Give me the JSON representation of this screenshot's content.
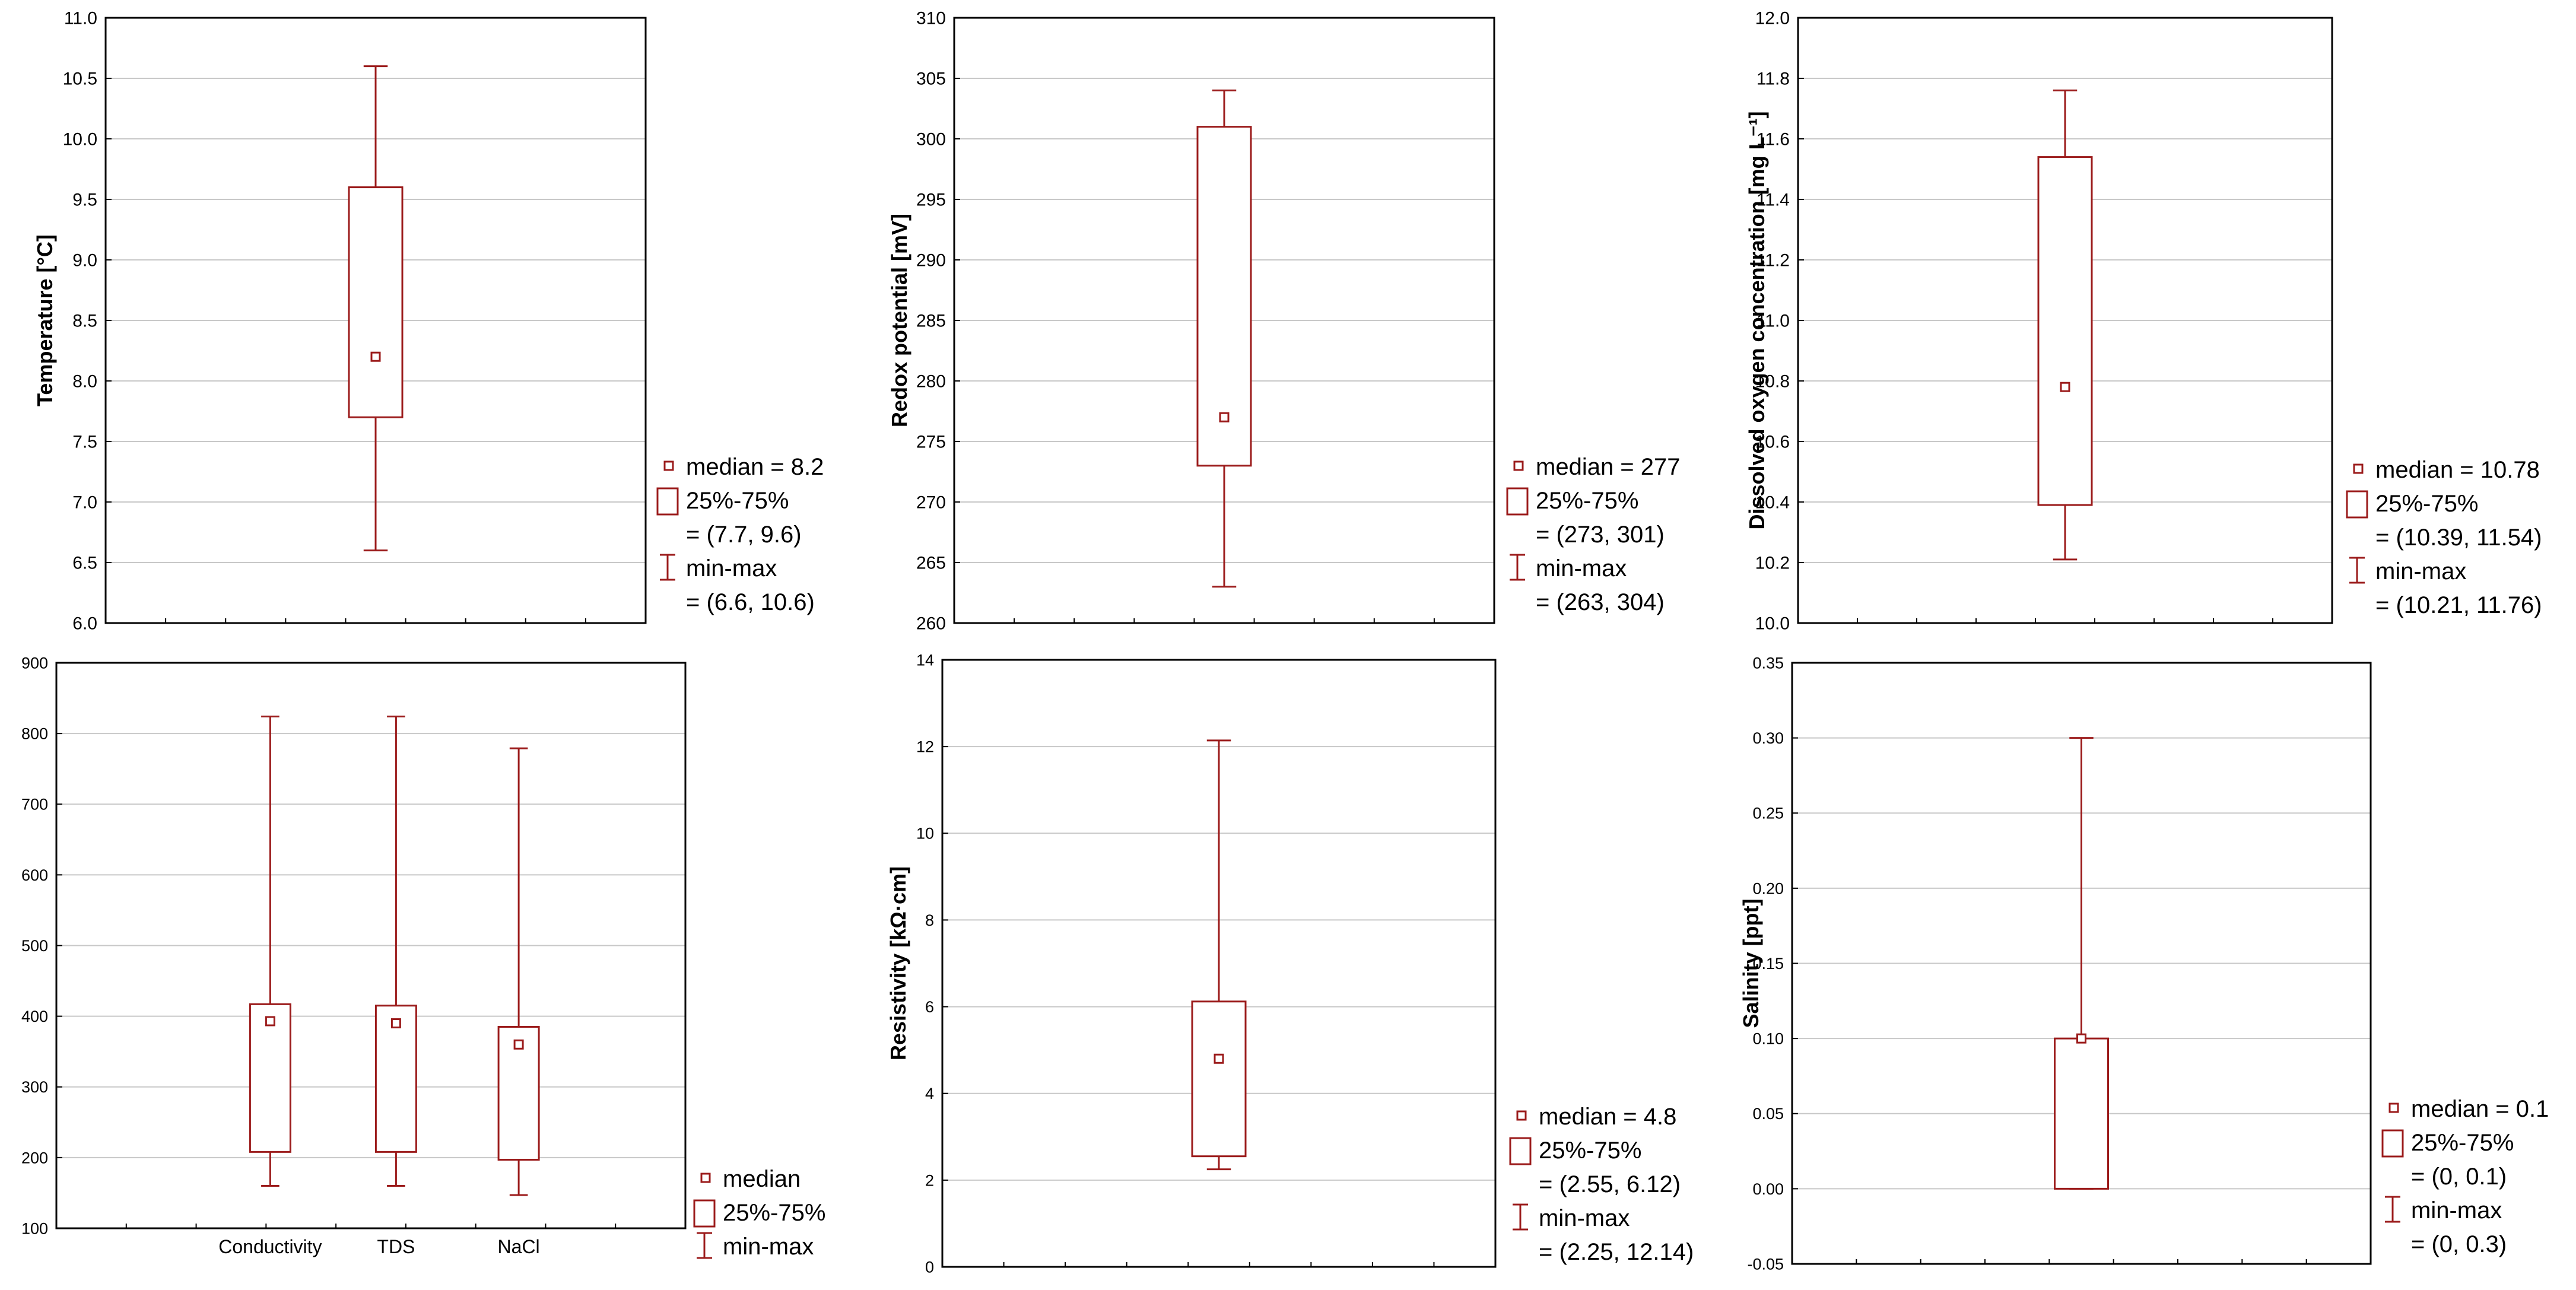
{
  "colors": {
    "box": "#9b1b1b",
    "grid": "#c8c8c8",
    "frame": "#000000",
    "text": "#000000"
  },
  "chart_data": [
    {
      "id": "temperature",
      "type": "box",
      "ylabel": "Temperature [°C]",
      "ylim": [
        6.0,
        11.0
      ],
      "yticks": [
        "6.0",
        "6.5",
        "7.0",
        "7.5",
        "8.0",
        "8.5",
        "9.0",
        "9.5",
        "10.0",
        "10.5",
        "11.0"
      ],
      "boxes": [
        {
          "category": "",
          "median": 8.2,
          "q1": 7.7,
          "q3": 9.6,
          "min": 6.6,
          "max": 10.6
        }
      ],
      "legend": {
        "median": "median = 8.2",
        "box": "25%-75%",
        "box_range": "= (7.7, 9.6)",
        "whisker": "min-max",
        "whisker_range": "= (6.6, 10.6)"
      }
    },
    {
      "id": "redox",
      "type": "box",
      "ylabel": "Redox potential [mV]",
      "ylim": [
        260,
        310
      ],
      "yticks": [
        "260",
        "265",
        "270",
        "275",
        "280",
        "285",
        "290",
        "295",
        "300",
        "305",
        "310"
      ],
      "boxes": [
        {
          "category": "",
          "median": 277,
          "q1": 273,
          "q3": 301,
          "min": 263,
          "max": 304
        }
      ],
      "legend": {
        "median": "median = 277",
        "box": "25%-75%",
        "box_range": "= (273, 301)",
        "whisker": "min-max",
        "whisker_range": "= (263, 304)"
      }
    },
    {
      "id": "oxygen",
      "type": "box",
      "ylabel": "Dissolved oxygen concentration [mg L⁻¹]",
      "ylim": [
        10.0,
        12.0
      ],
      "yticks": [
        "10.0",
        "10.2",
        "10.4",
        "10.6",
        "10.8",
        "11.0",
        "11.2",
        "11.4",
        "11.6",
        "11.8",
        "12.0"
      ],
      "boxes": [
        {
          "category": "",
          "median": 10.78,
          "q1": 10.39,
          "q3": 11.54,
          "min": 10.21,
          "max": 11.76
        }
      ],
      "legend": {
        "median": "median = 10.78",
        "box": "25%-75%",
        "box_range": "= (10.39, 11.54)",
        "whisker": "min-max",
        "whisker_range": "= (10.21, 11.76)"
      }
    },
    {
      "id": "conductivity",
      "type": "box",
      "ylabel": "",
      "ylim": [
        100,
        900
      ],
      "yticks": [
        "100",
        "200",
        "300",
        "400",
        "500",
        "600",
        "700",
        "800",
        "900"
      ],
      "categories": [
        "Conductivity",
        "TDS",
        "NaCl"
      ],
      "boxes": [
        {
          "category": "Conductivity",
          "median": 393,
          "q1": 208,
          "q3": 417,
          "min": 160,
          "max": 824
        },
        {
          "category": "TDS",
          "median": 390,
          "q1": 208,
          "q3": 415,
          "min": 160,
          "max": 824
        },
        {
          "category": "NaCl",
          "median": 360,
          "q1": 197,
          "q3": 385,
          "min": 147,
          "max": 779
        }
      ],
      "legend": {
        "median": "median",
        "box": "25%-75%",
        "box_range": "",
        "whisker": "min-max",
        "whisker_range": ""
      }
    },
    {
      "id": "resistivity",
      "type": "box",
      "ylabel": "Resistivity [kΩ·cm]",
      "ylim": [
        0,
        14
      ],
      "yticks": [
        "0",
        "2",
        "4",
        "6",
        "8",
        "10",
        "12",
        "14"
      ],
      "boxes": [
        {
          "category": "",
          "median": 4.8,
          "q1": 2.55,
          "q3": 6.12,
          "min": 2.25,
          "max": 12.14
        }
      ],
      "legend": {
        "median": "median = 4.8",
        "box": "25%-75%",
        "box_range": "= (2.55, 6.12)",
        "whisker": "min-max",
        "whisker_range": "= (2.25, 12.14)"
      }
    },
    {
      "id": "salinity",
      "type": "box",
      "ylabel": "Salinity [ppt]",
      "ylim": [
        -0.05,
        0.35
      ],
      "yticks": [
        "-0.05",
        "0.00",
        "0.05",
        "0.10",
        "0.15",
        "0.20",
        "0.25",
        "0.30",
        "0.35"
      ],
      "boxes": [
        {
          "category": "",
          "median": 0.1,
          "q1": 0.0,
          "q3": 0.1,
          "min": 0.0,
          "max": 0.3
        }
      ],
      "legend": {
        "median": "median = 0.1",
        "box": "25%-75%",
        "box_range": "= (0, 0.1)",
        "whisker": "min-max",
        "whisker_range": "= (0, 0.3)"
      }
    }
  ]
}
